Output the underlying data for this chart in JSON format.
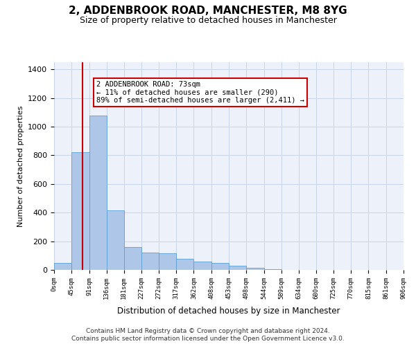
{
  "title": "2, ADDENBROOK ROAD, MANCHESTER, M8 8YG",
  "subtitle": "Size of property relative to detached houses in Manchester",
  "xlabel": "Distribution of detached houses by size in Manchester",
  "ylabel": "Number of detached properties",
  "footer_line1": "Contains HM Land Registry data © Crown copyright and database right 2024.",
  "footer_line2": "Contains public sector information licensed under the Open Government Licence v3.0.",
  "bar_color": "#aec6e8",
  "bar_edge_color": "#5a9fd4",
  "bg_color": "#edf2fa",
  "grid_color": "#c8d4e8",
  "vline_x": 73,
  "vline_color": "#cc0000",
  "annotation_text": "2 ADDENBROOK ROAD: 73sqm\n← 11% of detached houses are smaller (290)\n89% of semi-detached houses are larger (2,411) →",
  "annotation_box_color": "#ffffff",
  "annotation_border_color": "#cc0000",
  "bin_edges": [
    0,
    45,
    91,
    136,
    181,
    227,
    272,
    317,
    362,
    408,
    453,
    498,
    544,
    589,
    634,
    680,
    725,
    770,
    815,
    861,
    906
  ],
  "bar_heights": [
    50,
    820,
    1080,
    415,
    160,
    120,
    115,
    75,
    60,
    50,
    30,
    15,
    5,
    2,
    1,
    0,
    0,
    0,
    0,
    0
  ],
  "ylim": [
    0,
    1450
  ],
  "yticks": [
    0,
    200,
    400,
    600,
    800,
    1000,
    1200,
    1400
  ]
}
